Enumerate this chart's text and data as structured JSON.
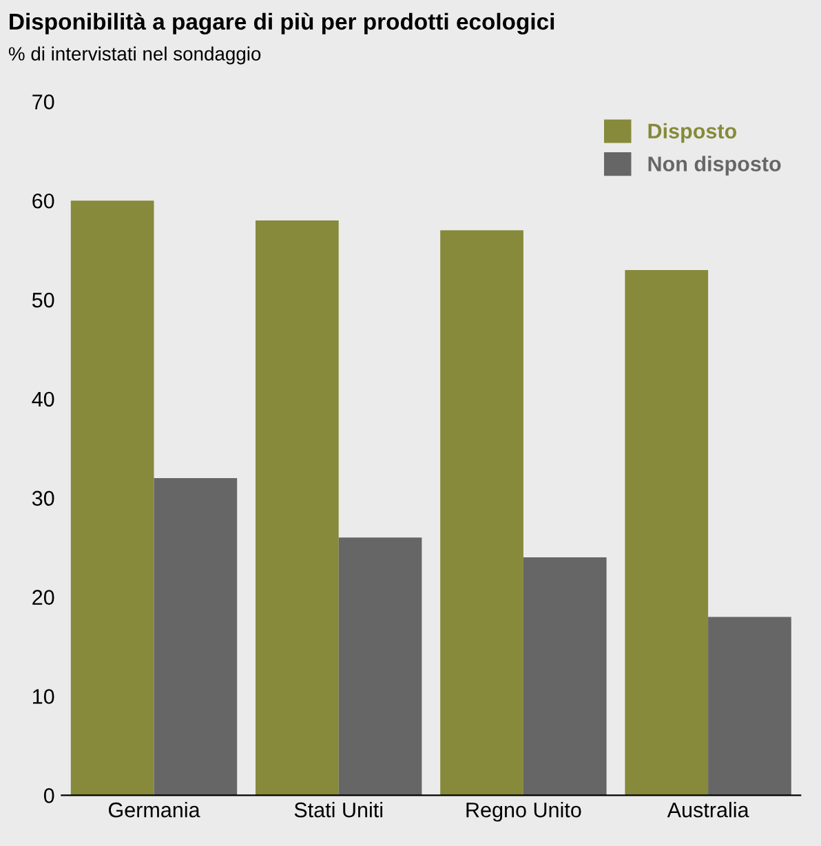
{
  "chart_data": {
    "type": "bar",
    "title": "Disponibilità a pagare di più per prodotti ecologici",
    "subtitle": "% di intervistati nel sondaggio",
    "categories": [
      "Germania",
      "Stati Uniti",
      "Regno Unito",
      "Australia"
    ],
    "series": [
      {
        "name": "Disposto",
        "color": "#868a3a",
        "values": [
          60,
          58,
          57,
          53
        ]
      },
      {
        "name": "Non disposto",
        "color": "#666666",
        "values": [
          32,
          26,
          24,
          18
        ]
      }
    ],
    "ylim": [
      0,
      70
    ],
    "yticks": [
      0,
      10,
      20,
      30,
      40,
      50,
      60,
      70
    ],
    "grid": false,
    "legend": "top right"
  }
}
